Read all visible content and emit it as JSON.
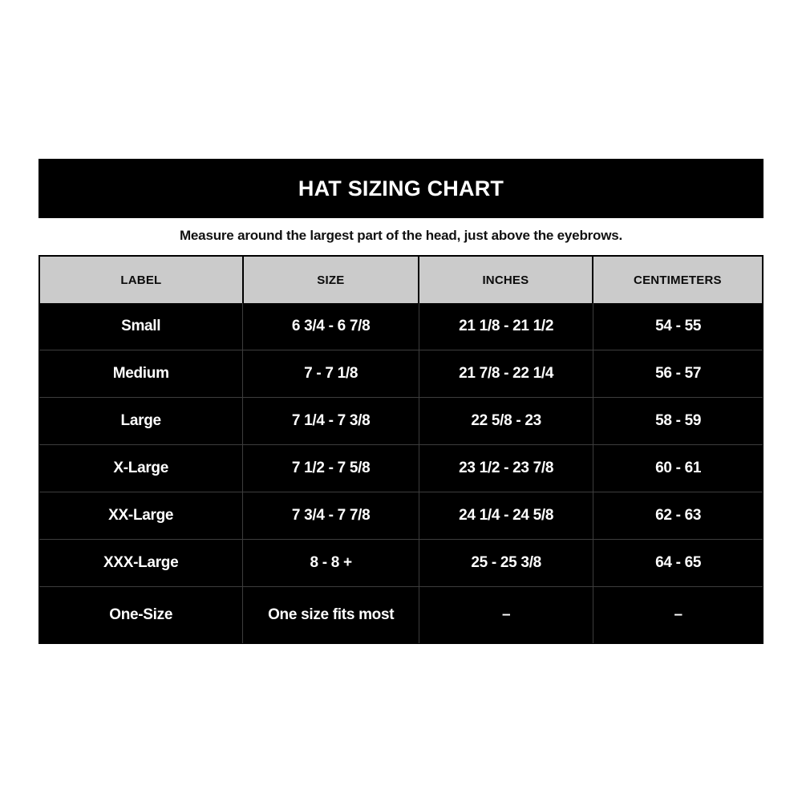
{
  "page": {
    "title": "HAT SIZING CHART",
    "subtitle": "Measure around the largest part of the head, just above the eyebrows."
  },
  "table": {
    "columns": [
      "LABEL",
      "SIZE",
      "INCHES",
      "CENTIMETERS"
    ],
    "rows": [
      {
        "label": "Small",
        "size": "6 3/4 - 6 7/8",
        "inches": "21 1/8 - 21 1/2",
        "centimeters": "54 - 55"
      },
      {
        "label": "Medium",
        "size": "7 - 7 1/8",
        "inches": "21 7/8 - 22 1/4",
        "centimeters": "56 - 57"
      },
      {
        "label": "Large",
        "size": "7 1/4 - 7 3/8",
        "inches": "22 5/8 - 23",
        "centimeters": "58 - 59"
      },
      {
        "label": "X-Large",
        "size": "7 1/2 - 7 5/8",
        "inches": "23 1/2 - 23 7/8",
        "centimeters": "60 - 61"
      },
      {
        "label": "XX-Large",
        "size": "7 3/4 - 7 7/8",
        "inches": "24 1/4 - 24 5/8",
        "centimeters": "62 - 63"
      },
      {
        "label": "XXX-Large",
        "size": "8 - 8 +",
        "inches": "25 - 25 3/8",
        "centimeters": "64 - 65"
      },
      {
        "label": "One-Size",
        "size": "One size fits most",
        "inches": "–",
        "centimeters": "–"
      }
    ]
  },
  "colors": {
    "title_bar_bg": "#000000",
    "title_text": "#ffffff",
    "subtitle_text": "#111111",
    "header_row_bg": "#cbcbcb",
    "header_text": "#0b0b0b",
    "body_bg": "#000000",
    "body_text": "#ffffff",
    "grid_line": "#3d3d3d"
  },
  "chart_data": {
    "type": "table",
    "title": "HAT SIZING CHART",
    "subtitle": "Measure around the largest part of the head, just above the eyebrows.",
    "columns": [
      "LABEL",
      "SIZE",
      "INCHES",
      "CENTIMETERS"
    ],
    "rows": [
      [
        "Small",
        "6 3/4 - 6 7/8",
        "21 1/8 - 21 1/2",
        "54 - 55"
      ],
      [
        "Medium",
        "7 - 7 1/8",
        "21 7/8 - 22 1/4",
        "56 - 57"
      ],
      [
        "Large",
        "7 1/4 - 7 3/8",
        "22 5/8 - 23",
        "58 - 59"
      ],
      [
        "X-Large",
        "7 1/2 - 7 5/8",
        "23 1/2 - 23 7/8",
        "60 - 61"
      ],
      [
        "XX-Large",
        "7 3/4 - 7 7/8",
        "24 1/4 - 24 5/8",
        "62 - 63"
      ],
      [
        "XXX-Large",
        "8 - 8 +",
        "25 - 25 3/8",
        "64 - 65"
      ],
      [
        "One-Size",
        "One size fits most",
        "–",
        "–"
      ]
    ],
    "layout_hints": {
      "header_background": "#cbcbcb",
      "body_background": "#000000",
      "grid": "on",
      "column_width_pct": [
        28.2,
        24.35,
        24.1,
        23.35
      ]
    }
  }
}
